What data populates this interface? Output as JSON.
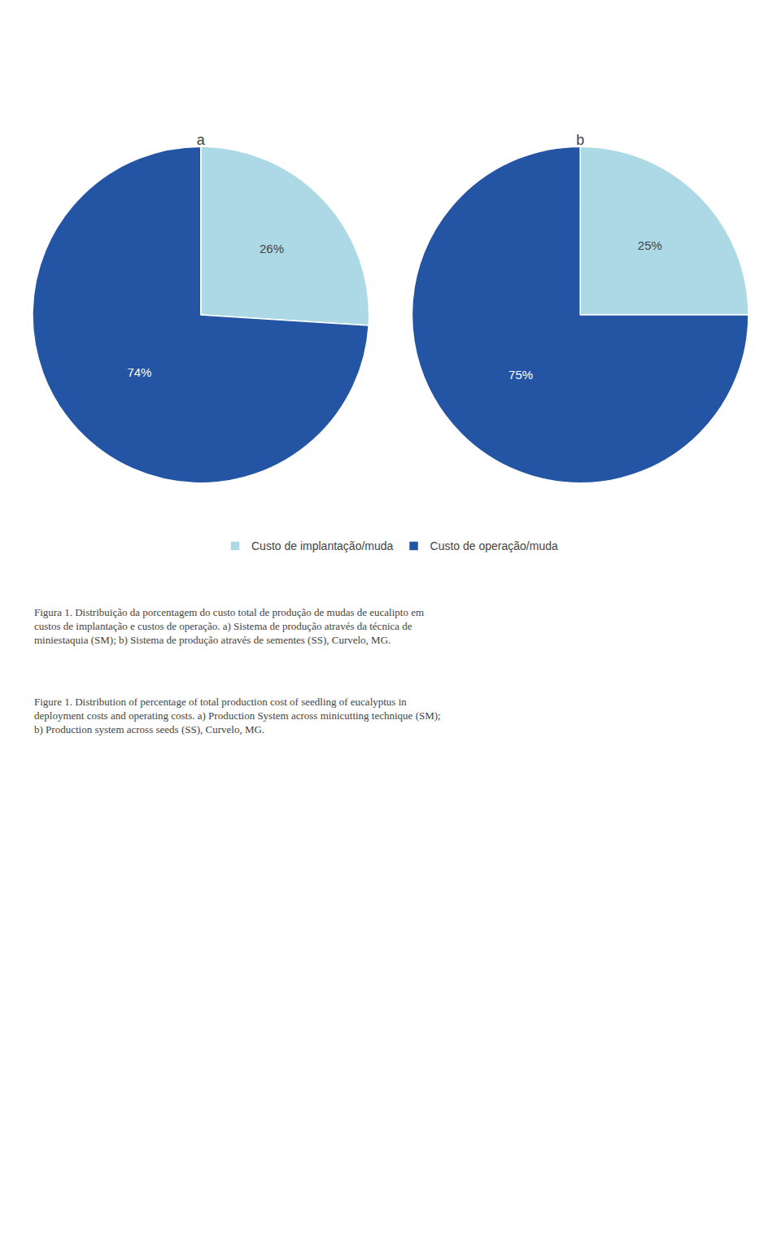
{
  "chart_data": [
    {
      "type": "pie",
      "title": "a",
      "categories": [
        "Custo de implantação/muda",
        "Custo de operação/muda"
      ],
      "values": [
        26,
        74
      ],
      "value_labels": [
        "26%",
        "74%"
      ],
      "colors": [
        "#add8e6",
        "#2455a4"
      ],
      "data_labels": true,
      "legend": "bottom",
      "annotations": [
        "Figura 1. Distribuição da porcentagem do custo total de produção de mudas de eucalipto em custos de implantação e custos de operação. a) Sistema de produção através da técnica de miniestaquia (SM); b) Sistema de produção através de sementes (SS), Curvelo, MG.",
        "Figure 1. Distribution of percentage of total production cost of seedling of eucalyptus in deployment costs and operating costs. a) Production System across minicutting technique (SM); b) Production system across seeds (SS), Curvelo, MG."
      ]
    },
    {
      "type": "pie",
      "title": "b",
      "categories": [
        "Custo de implantação/muda",
        "Custo de operação/muda"
      ],
      "values": [
        25,
        75
      ],
      "value_labels": [
        "25%",
        "75%"
      ],
      "colors": [
        "#add8e6",
        "#2455a4"
      ],
      "data_labels": true,
      "legend": "bottom"
    }
  ]
}
